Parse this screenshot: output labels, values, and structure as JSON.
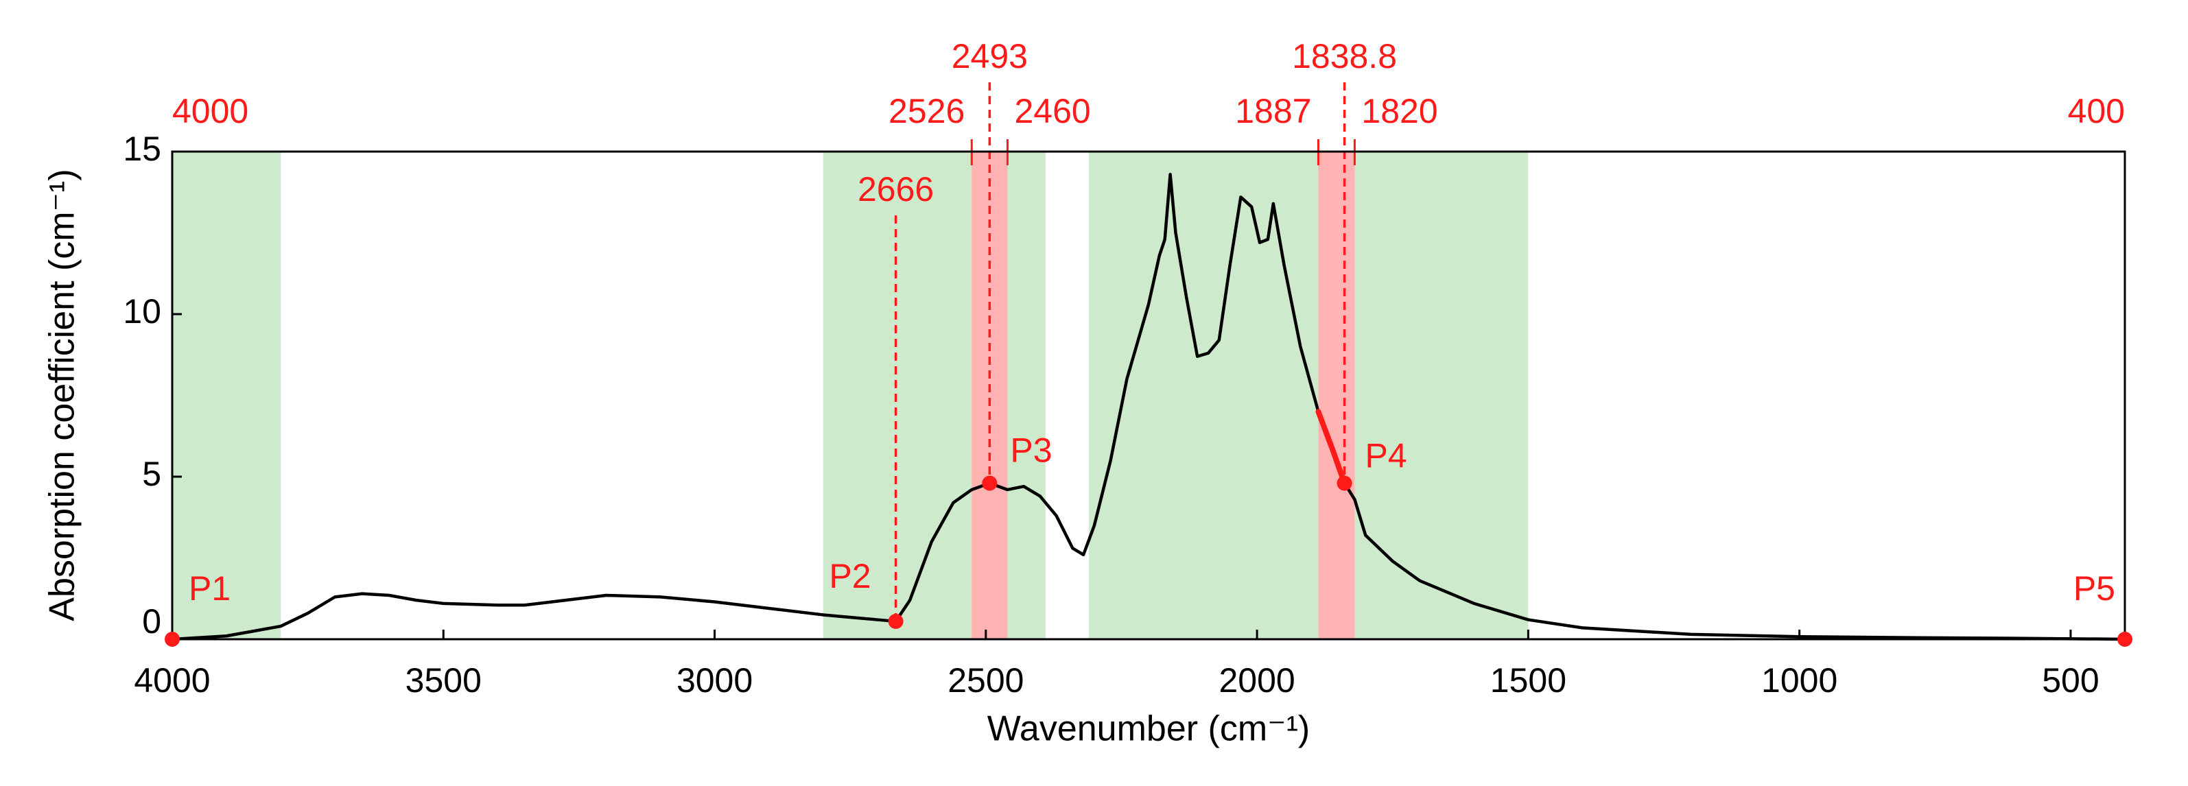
{
  "chart_data": {
    "type": "line",
    "xlabel": "Wavenumber (cm⁻¹)",
    "ylabel": "Absorption coefficient (cm⁻¹)",
    "xlim": [
      4000,
      400
    ],
    "xticks": [
      4000,
      3500,
      3000,
      2500,
      2000,
      1500,
      1000,
      500
    ],
    "ylim": [
      0,
      15
    ],
    "yticks": [
      0,
      5,
      10,
      15
    ],
    "color": "#000000",
    "x": [
      4000,
      3900,
      3800,
      3750,
      3700,
      3650,
      3600,
      3550,
      3500,
      3400,
      3350,
      3300,
      3200,
      3100,
      3000,
      2900,
      2800,
      2700,
      2666,
      2640,
      2600,
      2560,
      2526,
      2493,
      2460,
      2430,
      2400,
      2370,
      2340,
      2320,
      2300,
      2270,
      2240,
      2200,
      2180,
      2170,
      2160,
      2150,
      2130,
      2110,
      2090,
      2070,
      2050,
      2030,
      2010,
      1995,
      1980,
      1970,
      1950,
      1920,
      1887,
      1860,
      1838.8,
      1820,
      1800,
      1750,
      1700,
      1600,
      1500,
      1400,
      1200,
      1000,
      800,
      600,
      400
    ],
    "values": [
      0,
      0.1,
      0.4,
      0.8,
      1.3,
      1.4,
      1.35,
      1.2,
      1.1,
      1.05,
      1.05,
      1.15,
      1.35,
      1.3,
      1.15,
      0.95,
      0.75,
      0.6,
      0.55,
      1.2,
      3.0,
      4.2,
      4.6,
      4.8,
      4.6,
      4.7,
      4.4,
      3.8,
      2.8,
      2.6,
      3.5,
      5.5,
      8.0,
      10.3,
      11.8,
      12.3,
      14.3,
      12.5,
      10.5,
      8.7,
      8.8,
      9.2,
      11.5,
      13.6,
      13.3,
      12.2,
      12.3,
      13.4,
      11.5,
      9.0,
      7.0,
      5.8,
      4.8,
      4.3,
      3.2,
      2.4,
      1.8,
      1.1,
      0.6,
      0.35,
      0.15,
      0.08,
      0.05,
      0.03,
      0
    ],
    "green_bands": [
      [
        4000,
        3800
      ],
      [
        2800,
        2390
      ],
      [
        2310,
        1500
      ]
    ],
    "green_color": "#cdeacd",
    "red_bands": [
      [
        2526,
        2460
      ],
      [
        1887,
        1820
      ]
    ],
    "red_color": "#ffb3b3",
    "markers": [
      {
        "x": 2493
      },
      {
        "x": 1838.8
      },
      {
        "x": 2666
      }
    ],
    "points": [
      {
        "name": "P1",
        "x": 4000,
        "y": 0
      },
      {
        "name": "P2",
        "x": 2666,
        "y": 0.55
      },
      {
        "name": "P3",
        "x": 2493,
        "y": 4.8
      },
      {
        "name": "P4",
        "x": 1838.8,
        "y": 4.8
      },
      {
        "name": "P5",
        "x": 400,
        "y": 0
      }
    ],
    "annotation_color": "#ff1a1a"
  }
}
